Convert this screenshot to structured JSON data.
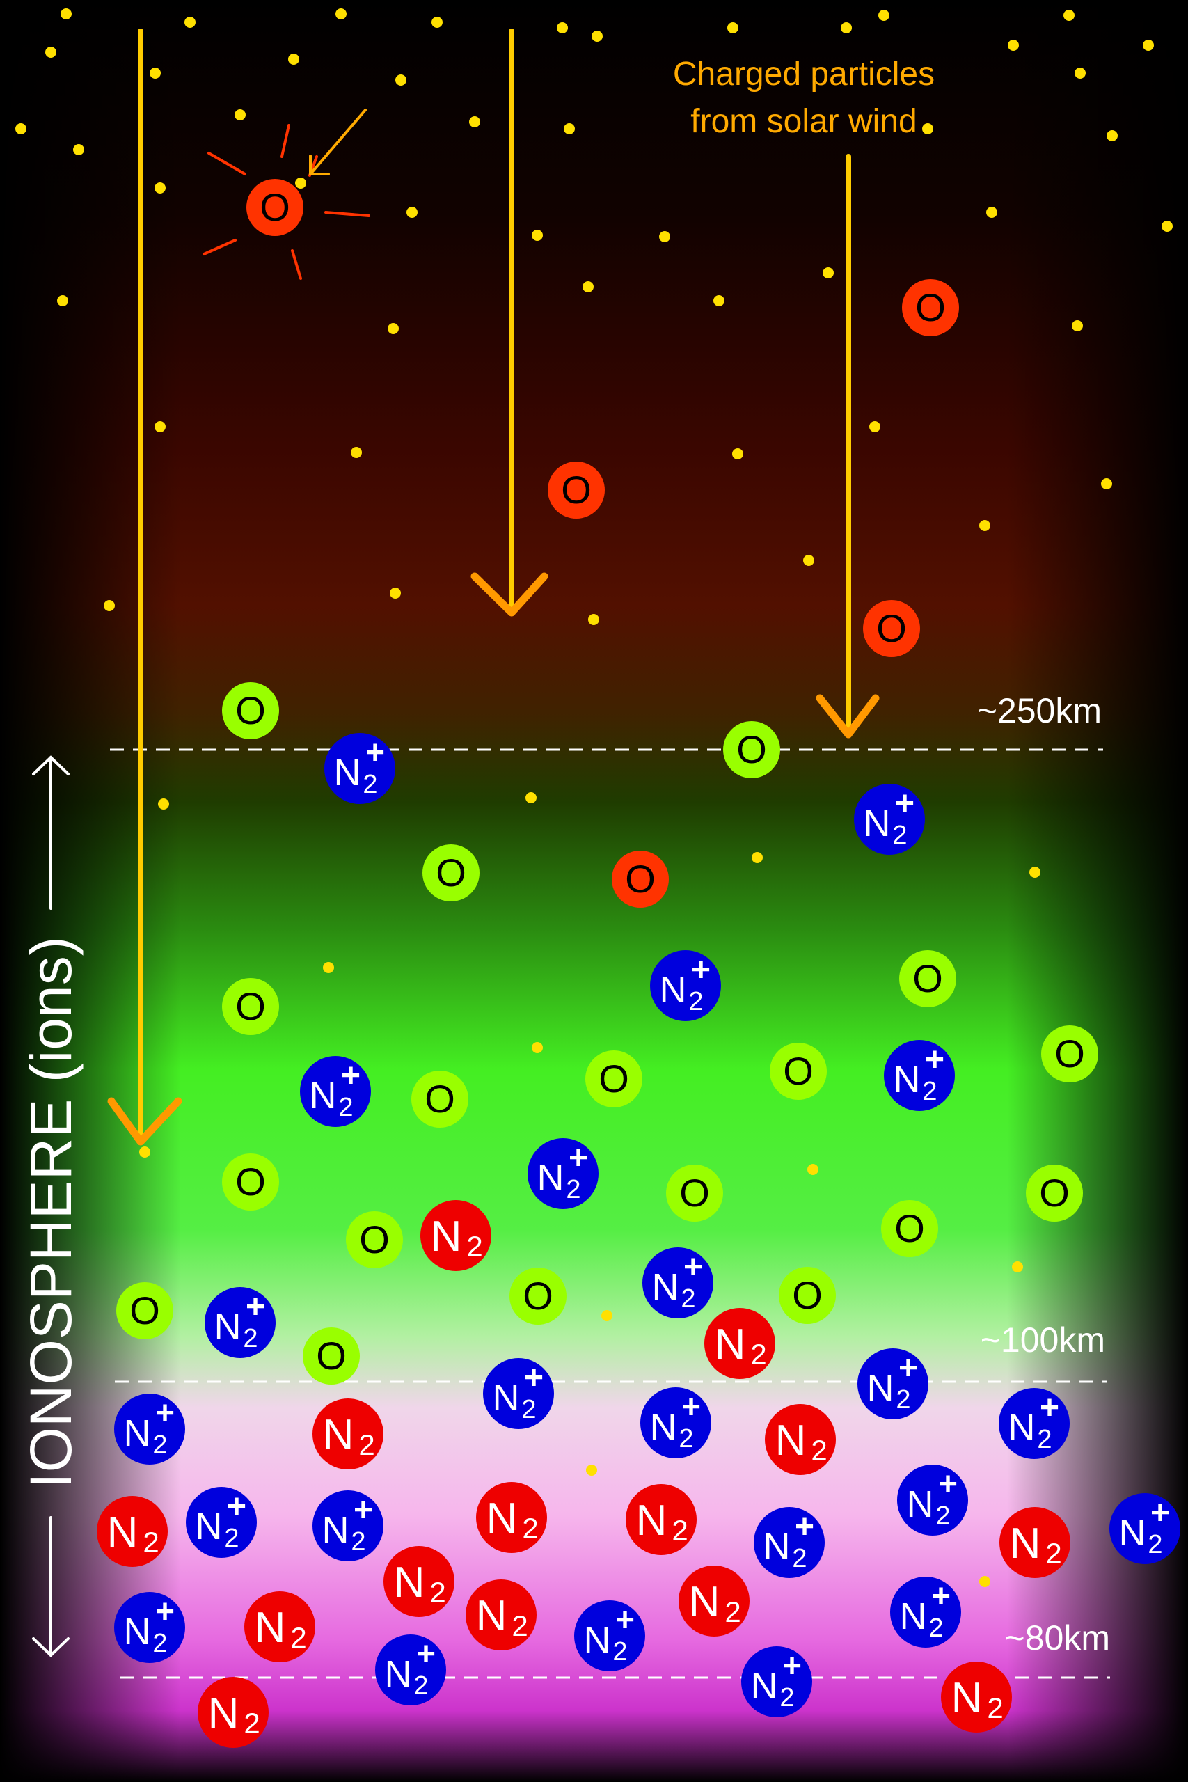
{
  "annotation": {
    "line1": "Charged particles",
    "line2": "from solar wind"
  },
  "altitudes": [
    "~250km",
    "~100km",
    "~80km"
  ],
  "ionosphere_label": "IONOSPHERE (ions)",
  "atom_labels": {
    "oxygen": "O",
    "nitrogen": "N",
    "subscript": "2",
    "charge": "+"
  },
  "colors": {
    "oxygen_excited": "#ff3300",
    "oxygen_green": "#99ff00",
    "nitrogen_ion": "#0000dd",
    "nitrogen_molecule": "#ee0000",
    "arrow_yellow": "#ffcc00",
    "arrow_orange": "#ff9900",
    "star_dot": "#ffe000",
    "label_orange": "#ffaa00"
  }
}
